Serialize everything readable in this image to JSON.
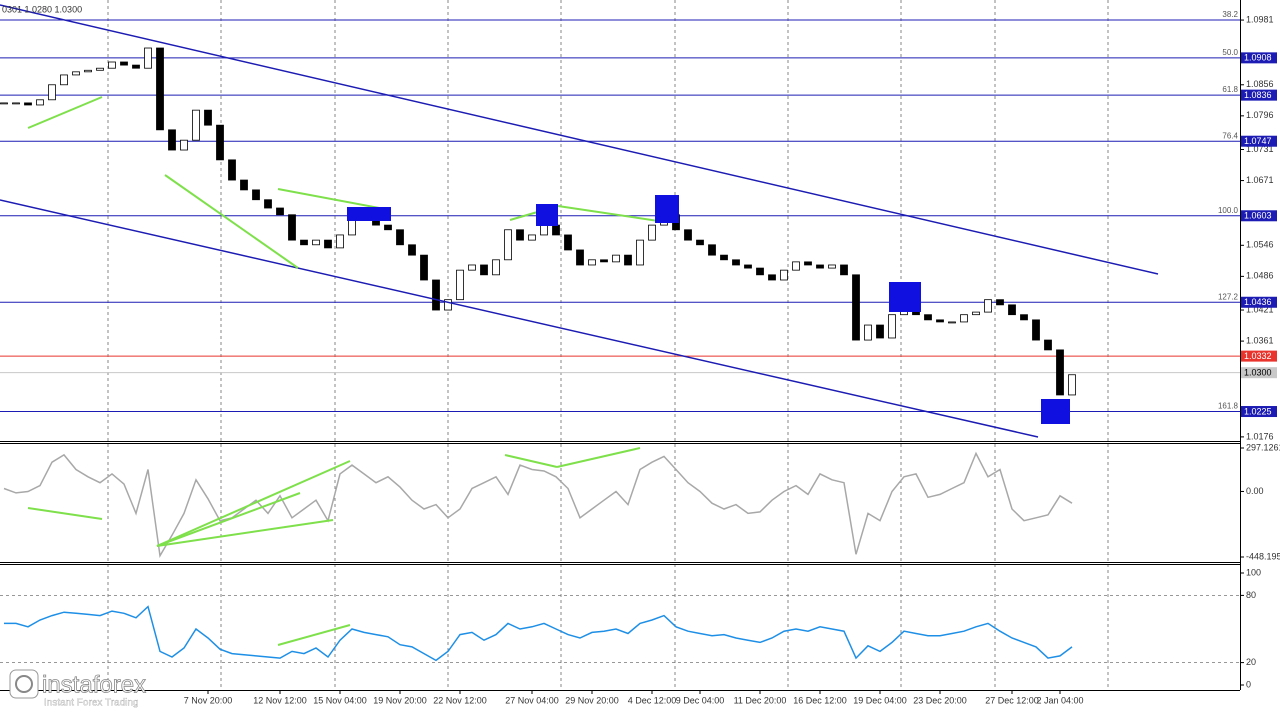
{
  "chart_data": [
    {
      "type": "candlestick",
      "header": "0301 1.0280 1.0300",
      "categories": [
        null,
        null,
        null,
        null,
        null,
        null,
        null,
        null,
        null,
        null,
        null,
        null,
        null,
        null,
        null,
        null,
        null,
        "7 Nov 20:00",
        null,
        null,
        null,
        null,
        null,
        "12 Nov 12:00",
        null,
        null,
        null,
        null,
        "15 Nov 04:00",
        null,
        null,
        null,
        null,
        "19 Nov 20:00",
        null,
        null,
        null,
        null,
        "22 Nov 12:00",
        null,
        null,
        null,
        null,
        null,
        "27 Nov 04:00",
        null,
        null,
        null,
        null,
        "29 Nov 20:00",
        null,
        null,
        null,
        null,
        "4 Dec 12:00",
        null,
        null,
        null,
        "9 Dec 04:00",
        null,
        null,
        null,
        null,
        "11 Dec 20:00",
        null,
        null,
        null,
        null,
        "16 Dec 12:00",
        null,
        null,
        null,
        null,
        "19 Dec 04:00",
        null,
        null,
        null,
        null,
        "23 Dec 20:00",
        null,
        null,
        null,
        null,
        null,
        "27 Dec 12:00",
        null,
        null,
        null,
        "2 Jan 04:00",
        null
      ],
      "values": [
        1.0821,
        1.0821,
        1.0817,
        1.0827,
        1.0856,
        1.0875,
        1.0881,
        1.0884,
        1.0888,
        1.09,
        1.0894,
        1.0888,
        1.0927,
        1.0769,
        1.073,
        1.0749,
        1.0807,
        1.0778,
        1.0711,
        1.0672,
        1.0653,
        1.0634,
        1.0618,
        1.0605,
        1.0556,
        1.0547,
        1.0556,
        1.0541,
        1.0566,
        1.0605,
        1.0595,
        1.0585,
        1.0576,
        1.0547,
        1.0527,
        1.0479,
        1.0421,
        1.0441,
        1.0498,
        1.0508,
        1.0489,
        1.0518,
        1.0576,
        1.0556,
        1.0566,
        1.0585,
        1.0566,
        1.0537,
        1.0508,
        1.0518,
        1.0514,
        1.0527,
        1.0508,
        1.0556,
        1.0585,
        1.0605,
        1.0576,
        1.0556,
        1.0547,
        1.0527,
        1.0518,
        1.0508,
        1.0502,
        1.0489,
        1.0479,
        1.0498,
        1.0514,
        1.0508,
        1.0502,
        1.0508,
        1.0489,
        1.0363,
        1.0392,
        1.0367,
        1.0412,
        1.0441,
        1.0412,
        1.0402,
        1.0398,
        1.0398,
        1.0412,
        1.0417,
        1.0441,
        1.0431,
        1.0412,
        1.0402,
        1.0363,
        1.0344,
        1.0257,
        1.0296
      ],
      "bull_color": "#ffffff",
      "bear_color": "#000000",
      "ylim": [
        1.017,
        1.1012
      ],
      "yticks": [
        1.0981,
        1.0856,
        1.0796,
        1.0731,
        1.0671,
        1.0546,
        1.0486,
        1.0421,
        1.0361,
        1.0176
      ],
      "fib_color": "#1c1cb4",
      "fib_levels": [
        {
          "ratio": 38.2,
          "price": 1.0981,
          "boxed": false
        },
        {
          "ratio": {
            "value": 50,
            "label": "50.0"
          },
          "price": 1.0908,
          "boxed": true
        },
        {
          "ratio": 61.8,
          "price": 1.0836,
          "boxed": true
        },
        {
          "ratio": 76.4,
          "price": 1.0747,
          "boxed": true
        },
        {
          "ratio": {
            "value": 100,
            "label": "100.0"
          },
          "price": 1.0603,
          "boxed": true
        },
        {
          "ratio": 127.2,
          "price": 1.0436,
          "boxed": true
        },
        {
          "ratio": 161.8,
          "price": 1.0225,
          "boxed": true
        }
      ],
      "price_markers": [
        {
          "price": 1.0332,
          "color": "#e8342c",
          "text_color": "#ffffff"
        },
        {
          "price": {
            "value": 1.03,
            "label": "1.0300"
          },
          "color": "#c8c8c8",
          "text_color": "#000000"
        }
      ]
    },
    {
      "type": "line",
      "color": "#a8a8a8",
      "values": [
        20,
        -10,
        0,
        40,
        200,
        250,
        150,
        100,
        60,
        120,
        50,
        -150,
        150,
        -440,
        -300,
        -150,
        80,
        -50,
        -200,
        -180,
        -120,
        -60,
        -150,
        -30,
        -180,
        -120,
        -60,
        -200,
        120,
        180,
        120,
        60,
        100,
        30,
        -60,
        -120,
        -90,
        -180,
        -120,
        20,
        60,
        100,
        -20,
        180,
        150,
        140,
        100,
        20,
        -180,
        -120,
        -60,
        0,
        -90,
        150,
        200,
        240,
        150,
        60,
        0,
        -80,
        -120,
        -90,
        -150,
        -140,
        -60,
        0,
        40,
        -20,
        120,
        80,
        60,
        -430,
        -150,
        -200,
        0,
        100,
        120,
        -40,
        -20,
        20,
        60,
        260,
        100,
        150,
        -120,
        -200,
        -180,
        -160,
        -30,
        -80
      ],
      "ylim": [
        -448.195,
        297.1261
      ],
      "yticks": [
        297.1261,
        {
          "value": 0,
          "label": "0.00"
        },
        -448.195
      ],
      "grid": false
    },
    {
      "type": "line",
      "color": "#1e8fe6",
      "values": [
        55,
        55,
        52,
        58,
        62,
        65,
        64,
        63,
        62,
        66,
        64,
        60,
        70,
        30,
        25,
        33,
        50,
        42,
        32,
        28,
        27,
        26,
        25,
        24,
        30,
        28,
        33,
        25,
        40,
        50,
        47,
        45,
        43,
        36,
        34,
        28,
        22,
        30,
        45,
        47,
        40,
        45,
        55,
        50,
        52,
        55,
        50,
        45,
        42,
        47,
        48,
        50,
        46,
        55,
        58,
        62,
        52,
        48,
        46,
        44,
        45,
        42,
        40,
        38,
        42,
        48,
        50,
        48,
        52,
        50,
        48,
        24,
        35,
        30,
        38,
        48,
        46,
        44,
        44,
        46,
        48,
        52,
        55,
        48,
        42,
        38,
        34,
        24,
        26,
        34
      ],
      "ylim": [
        0,
        100
      ],
      "yticks": [
        100,
        80,
        20,
        0
      ],
      "grid": true
    }
  ],
  "logo": {
    "name": "instaforex",
    "tagline": "Instant Forex Trading"
  }
}
